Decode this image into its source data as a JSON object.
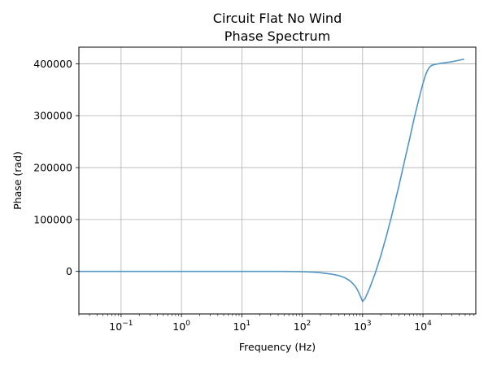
{
  "chart_data": {
    "type": "line",
    "title_line1": "Circuit Flat No Wind",
    "title_line2": "Phase Spectrum",
    "xlabel": "Frequency (Hz)",
    "ylabel": "Phase (rad)",
    "x_scale": "log",
    "xlim": [
      0.02,
      75000
    ],
    "ylim": [
      -82000,
      432000
    ],
    "grid": true,
    "x_ticks": [
      {
        "base": "10",
        "exp": "−1",
        "value": 0.1
      },
      {
        "base": "10",
        "exp": "0",
        "value": 1
      },
      {
        "base": "10",
        "exp": "1",
        "value": 10
      },
      {
        "base": "10",
        "exp": "2",
        "value": 100
      },
      {
        "base": "10",
        "exp": "3",
        "value": 1000
      },
      {
        "base": "10",
        "exp": "4",
        "value": 10000
      }
    ],
    "y_ticks": [
      {
        "label": "0",
        "value": 0
      },
      {
        "label": "100000",
        "value": 100000
      },
      {
        "label": "200000",
        "value": 200000
      },
      {
        "label": "300000",
        "value": 300000
      },
      {
        "label": "400000",
        "value": 400000
      }
    ],
    "line_color": "#5196c4",
    "series": [
      {
        "x": [
          0.02,
          0.1,
          1,
          10,
          40,
          60,
          80,
          100,
          150,
          200,
          300,
          400,
          500,
          600,
          700,
          800,
          900,
          1000,
          1100,
          1300,
          1600,
          2000,
          2500,
          3000,
          4000,
          5000,
          6000,
          7000,
          8000,
          9000,
          10000,
          11000,
          12000,
          13000,
          14000,
          16000,
          20000,
          30000,
          40000,
          48000
        ],
        "y": [
          0,
          0,
          0,
          0,
          -50,
          -150,
          -300,
          -600,
          -1500,
          -2500,
          -5000,
          -8000,
          -12000,
          -17000,
          -24000,
          -33000,
          -45000,
          -58000,
          -52000,
          -33000,
          -5000,
          30000,
          70000,
          105000,
          165000,
          215000,
          255000,
          290000,
          318000,
          342000,
          362000,
          378000,
          388000,
          394000,
          397000,
          399000,
          401000,
          404000,
          407000,
          409000
        ]
      }
    ]
  }
}
